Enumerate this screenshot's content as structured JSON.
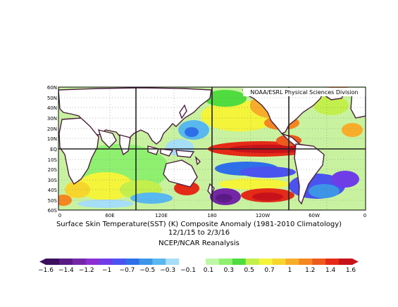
{
  "credit": "NOAA/ESRL Physical Sciences Division",
  "lat_labels": [
    "60N",
    "50N",
    "40N",
    "30N",
    "20N",
    "10N",
    "EQ",
    "10S",
    "20S",
    "30S",
    "40S",
    "50S",
    "60S"
  ],
  "lon_labels": [
    "0",
    "60E",
    "120E",
    "180",
    "120W",
    "60W",
    "0"
  ],
  "caption": {
    "line1": "Surface Skin Temperature(SST) (K) Composite Anomaly (1981-2010 Climatology)",
    "line2": "12/1/15   to 2/3/16",
    "line3": "NCEP/NCAR Reanalysis"
  },
  "colorbar": {
    "tick_labels": [
      "−1.6",
      "−1.4",
      "−1.2",
      "−1",
      "−0.7",
      "−0.5",
      "−0.3",
      "−0.1",
      "0.1",
      "0.3",
      "0.5",
      "0.7",
      "1",
      "1.2",
      "1.4",
      "1.6"
    ],
    "colors": [
      "#3c0f5c",
      "#5a1a85",
      "#7326a6",
      "#8b2fd0",
      "#6f3ce8",
      "#4a52f0",
      "#2d6fe8",
      "#3c95e6",
      "#58b8ef",
      "#a6ddf7",
      "#ffffff",
      "#ffffff",
      "#bef7a8",
      "#8ff070",
      "#4fdc3e",
      "#c3ef4c",
      "#f4f43a",
      "#f6d62d",
      "#f7ad29",
      "#f58620",
      "#ee5a1c",
      "#e52a17",
      "#c8121b"
    ]
  }
}
